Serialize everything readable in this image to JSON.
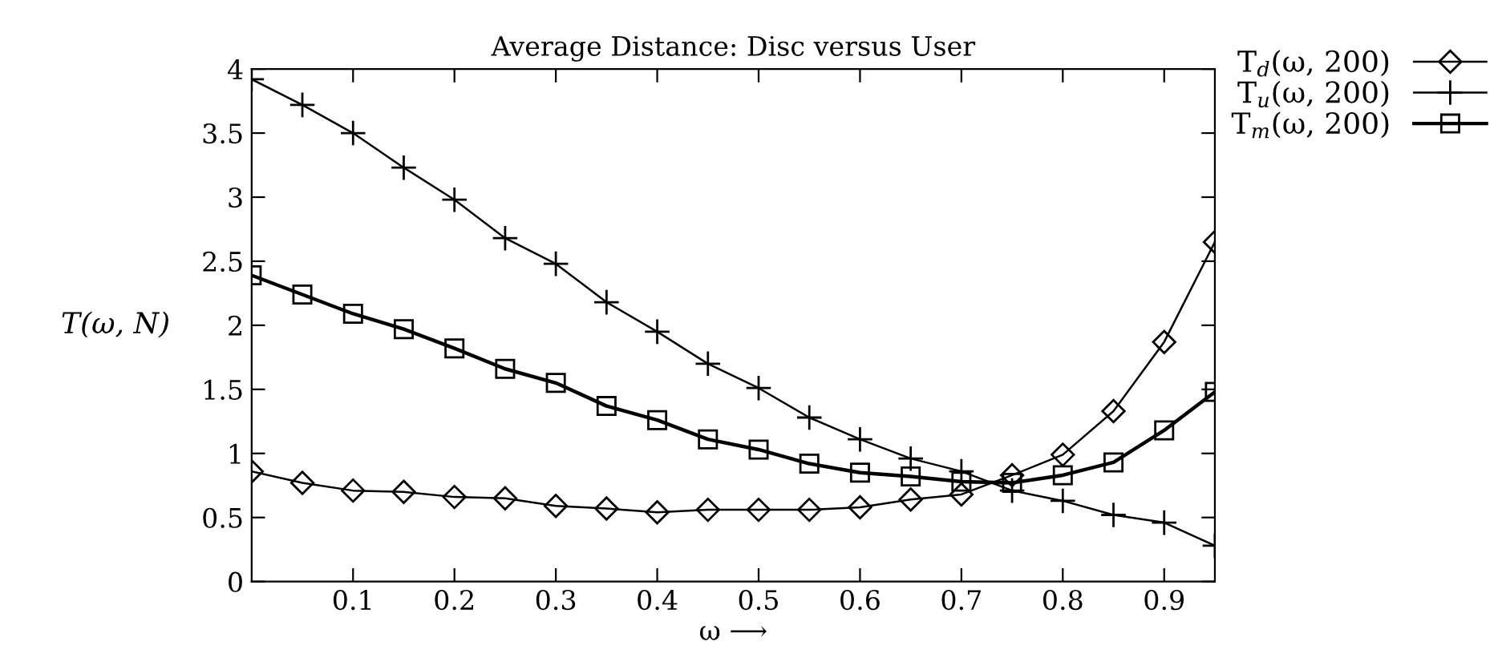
{
  "chart_data": {
    "type": "line",
    "title": "Average Distance: Disc versus User",
    "xlabel": "ω ⟶",
    "ylabel": "T(ω, N)",
    "x": [
      0,
      0.05,
      0.1,
      0.15,
      0.2,
      0.25,
      0.3,
      0.35,
      0.4,
      0.45,
      0.5,
      0.55,
      0.6,
      0.65,
      0.7,
      0.75,
      0.8,
      0.85,
      0.9,
      0.95
    ],
    "series": [
      {
        "name": "T$_{d}$(ω, 200)",
        "color": "#000000",
        "marker": "diamond",
        "values": [
          0.86,
          0.77,
          0.71,
          0.7,
          0.66,
          0.65,
          0.59,
          0.57,
          0.54,
          0.56,
          0.56,
          0.56,
          0.58,
          0.64,
          0.68,
          0.83,
          0.99,
          1.33,
          1.87,
          2.65
        ]
      },
      {
        "name": "T$_{u}$(ω, 200)",
        "color": "#000000",
        "marker": "cross",
        "values": [
          3.92,
          3.72,
          3.5,
          3.23,
          2.98,
          2.68,
          2.48,
          2.18,
          1.95,
          1.7,
          1.51,
          1.28,
          1.11,
          0.96,
          0.86,
          0.71,
          0.63,
          0.52,
          0.46,
          0.28
        ]
      },
      {
        "name": "T$_{m}$(ω, 200)",
        "color": "#000000",
        "marker": "square",
        "values": [
          2.39,
          2.24,
          2.09,
          1.97,
          1.82,
          1.66,
          1.55,
          1.37,
          1.26,
          1.11,
          1.03,
          0.92,
          0.85,
          0.82,
          0.78,
          0.77,
          0.83,
          0.93,
          1.18,
          1.48
        ]
      }
    ],
    "xlim": [
      0,
      0.95
    ],
    "ylim": [
      0,
      4
    ],
    "xticks": [
      0.1,
      0.2,
      0.3,
      0.4,
      0.5,
      0.6,
      0.7,
      0.8,
      0.9
    ],
    "yticks": [
      0,
      0.5,
      1,
      1.5,
      2,
      2.5,
      3,
      3.5,
      4
    ],
    "grid": false,
    "legend": "top right",
    "line_style": "solid"
  }
}
